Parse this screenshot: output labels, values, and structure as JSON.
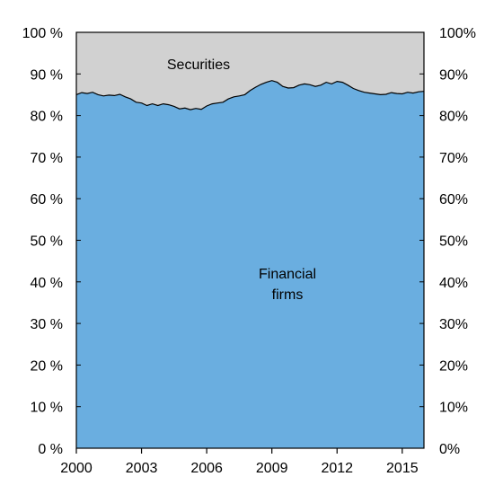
{
  "chart_data": {
    "type": "area",
    "stacked": true,
    "normalized_percent": true,
    "x_range": [
      2000,
      2016
    ],
    "ylim": [
      0,
      100
    ],
    "xticks": [
      2000,
      2003,
      2006,
      2009,
      2012,
      2015
    ],
    "yticks_left": [
      "0 %",
      "10 %",
      "20 %",
      "30 %",
      "40 %",
      "50 %",
      "60 %",
      "70 %",
      "80 %",
      "90 %",
      "100 %"
    ],
    "yticks_right": [
      "0%",
      "10%",
      "20%",
      "30%",
      "40%",
      "50%",
      "60%",
      "70%",
      "80%",
      "90%",
      "100%"
    ],
    "grid": false,
    "colors": {
      "Financial firms": "#6aaee0",
      "Securities": "#d1d1d1",
      "line": "#000000"
    },
    "x": [
      2000.0,
      2000.25,
      2000.5,
      2000.75,
      2001.0,
      2001.25,
      2001.5,
      2001.75,
      2002.0,
      2002.25,
      2002.5,
      2002.75,
      2003.0,
      2003.25,
      2003.5,
      2003.75,
      2004.0,
      2004.25,
      2004.5,
      2004.75,
      2005.0,
      2005.25,
      2005.5,
      2005.75,
      2006.0,
      2006.25,
      2006.5,
      2006.75,
      2007.0,
      2007.25,
      2007.5,
      2007.75,
      2008.0,
      2008.25,
      2008.5,
      2008.75,
      2009.0,
      2009.25,
      2009.5,
      2009.75,
      2010.0,
      2010.25,
      2010.5,
      2010.75,
      2011.0,
      2011.25,
      2011.5,
      2011.75,
      2012.0,
      2012.25,
      2012.5,
      2012.75,
      2013.0,
      2013.25,
      2013.5,
      2013.75,
      2014.0,
      2014.25,
      2014.5,
      2014.75,
      2015.0,
      2015.25,
      2015.5,
      2015.75,
      2016.0
    ],
    "series": [
      {
        "name": "Financial firms",
        "values": [
          85.0,
          85.5,
          85.3,
          85.6,
          85.0,
          84.7,
          84.9,
          84.8,
          85.1,
          84.5,
          84.0,
          83.2,
          83.0,
          82.4,
          82.8,
          82.4,
          82.8,
          82.6,
          82.2,
          81.6,
          81.8,
          81.4,
          81.7,
          81.5,
          82.3,
          82.8,
          83.0,
          83.2,
          84.0,
          84.5,
          84.7,
          85.0,
          86.0,
          86.8,
          87.5,
          88.0,
          88.4,
          88.0,
          87.0,
          86.6,
          86.7,
          87.3,
          87.6,
          87.4,
          87.0,
          87.3,
          88.0,
          87.6,
          88.2,
          88.0,
          87.3,
          86.5,
          86.0,
          85.6,
          85.4,
          85.2,
          85.0,
          85.1,
          85.5,
          85.3,
          85.2,
          85.6,
          85.4,
          85.7,
          85.8
        ]
      },
      {
        "name": "Securities",
        "values": [
          15.0,
          14.5,
          14.7,
          14.4,
          15.0,
          15.3,
          15.1,
          15.2,
          14.9,
          15.5,
          16.0,
          16.8,
          17.0,
          17.6,
          17.2,
          17.6,
          17.2,
          17.4,
          17.8,
          18.4,
          18.2,
          18.6,
          18.3,
          18.5,
          17.7,
          17.2,
          17.0,
          16.8,
          16.0,
          15.5,
          15.3,
          15.0,
          14.0,
          13.2,
          12.5,
          12.0,
          11.6,
          12.0,
          13.0,
          13.4,
          13.3,
          12.7,
          12.4,
          12.6,
          13.0,
          12.7,
          12.0,
          12.4,
          11.8,
          12.0,
          12.7,
          13.5,
          14.0,
          14.4,
          14.6,
          14.8,
          15.0,
          14.9,
          14.5,
          14.7,
          14.8,
          14.4,
          14.6,
          14.3,
          14.2
        ]
      }
    ],
    "labels": {
      "securities": "Securities",
      "financial_line1": "Financial",
      "financial_line2": "firms"
    }
  }
}
